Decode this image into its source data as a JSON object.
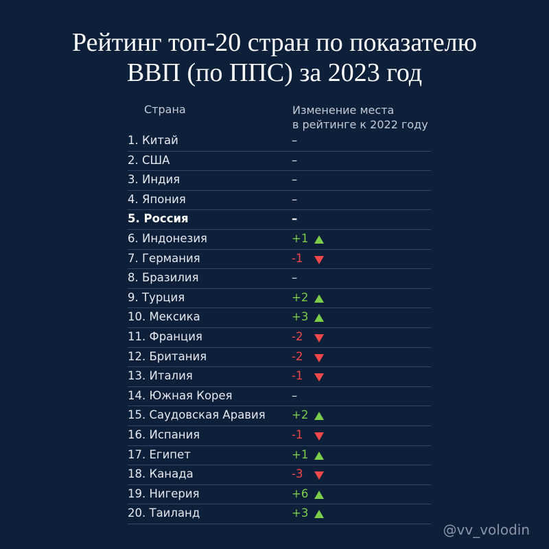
{
  "title": {
    "line1": "Рейтинг топ-20 стран по показателю",
    "line2": "ВВП (по ППС) за 2023 год"
  },
  "headers": {
    "country": "Страна",
    "change_line1": "Изменение места",
    "change_line2": "в рейтинге к 2022 году"
  },
  "colors": {
    "background": "#0e1f3a",
    "up": "#7ccd4a",
    "down": "#f04848"
  },
  "rows": [
    {
      "label": "1. Китай",
      "change": "–",
      "direction": "same"
    },
    {
      "label": "2. США",
      "change": "–",
      "direction": "same"
    },
    {
      "label": "3. Индия",
      "change": "–",
      "direction": "same"
    },
    {
      "label": "4. Япония",
      "change": "–",
      "direction": "same"
    },
    {
      "label": "5. Россия",
      "change": "–",
      "direction": "same",
      "highlight": true
    },
    {
      "label": "6. Индонезия",
      "change": "+1",
      "direction": "up"
    },
    {
      "label": "7. Германия",
      "change": "-1",
      "direction": "down"
    },
    {
      "label": "8. Бразилия",
      "change": "–",
      "direction": "same"
    },
    {
      "label": "9. Турция",
      "change": "+2",
      "direction": "up"
    },
    {
      "label": "10. Мексика",
      "change": "+3",
      "direction": "up"
    },
    {
      "label": "11. Франция",
      "change": "-2",
      "direction": "down"
    },
    {
      "label": "12. Британия",
      "change": "-2",
      "direction": "down"
    },
    {
      "label": "13. Италия",
      "change": "-1",
      "direction": "down"
    },
    {
      "label": "14. Южная Корея",
      "change": "–",
      "direction": "same"
    },
    {
      "label": "15. Саудовская Аравия",
      "change": "+2",
      "direction": "up"
    },
    {
      "label": "16. Испания",
      "change": "-1",
      "direction": "down"
    },
    {
      "label": "17. Египет",
      "change": "+1",
      "direction": "up"
    },
    {
      "label": "18. Канада",
      "change": "-3",
      "direction": "down"
    },
    {
      "label": "19. Нигерия",
      "change": "+6",
      "direction": "up"
    },
    {
      "label": "20. Таиланд",
      "change": "+3",
      "direction": "up"
    }
  ],
  "watermark": "@vv_volodin"
}
